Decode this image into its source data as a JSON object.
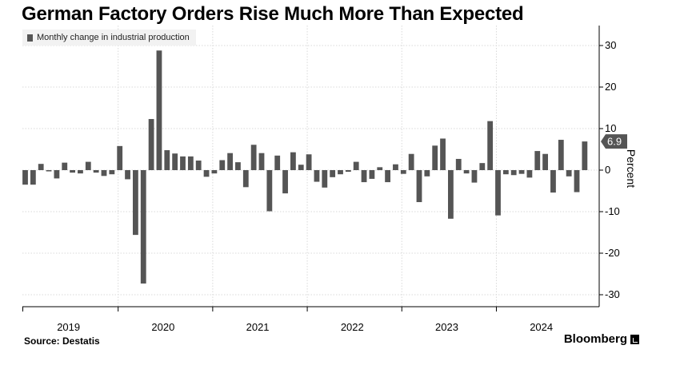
{
  "title": "German Factory Orders Rise Much More Than Expected",
  "source": "Source:  Destatis",
  "brand": "Bloomberg",
  "colors": {
    "bar": "#555555",
    "grid": "#d9d9d9",
    "axis": "#000000",
    "callout_bg": "#555555",
    "callout_text": "#ffffff"
  },
  "chart_data": {
    "type": "bar",
    "legend": [
      "Monthly change in industrial production"
    ],
    "legend_position": "top-left",
    "ylabel": "Percent",
    "ylim": [
      -33,
      34
    ],
    "yticks": [
      30,
      20,
      10,
      0,
      -10,
      -20,
      -30
    ],
    "y_axis_side": "right",
    "grid": true,
    "x_tick_labels": [
      "2019",
      "2020",
      "2021",
      "2022",
      "2023",
      "2024"
    ],
    "last_value_label": "6.9",
    "series": [
      {
        "name": "Monthly change in industrial production",
        "values": [
          -3.5,
          -3.5,
          1.5,
          -0.3,
          -2.0,
          1.8,
          -0.6,
          -0.8,
          2.0,
          -0.6,
          -1.4,
          -1.0,
          5.8,
          -2.2,
          -15.6,
          -27.3,
          12.3,
          28.8,
          4.8,
          4.0,
          3.3,
          3.3,
          2.3,
          -1.6,
          -0.8,
          2.4,
          4.1,
          1.9,
          -4.1,
          6.1,
          4.1,
          -9.9,
          3.5,
          -5.6,
          4.3,
          1.3,
          3.8,
          -2.8,
          -4.2,
          -1.7,
          -1.0,
          -0.4,
          2.0,
          -2.9,
          -2.1,
          0.7,
          -2.9,
          1.4,
          -0.9,
          3.9,
          -7.7,
          -1.5,
          5.9,
          7.6,
          -11.7,
          2.7,
          -0.8,
          -3.0,
          1.7,
          11.8,
          -10.9,
          -1.0,
          -1.2,
          -0.9,
          -1.8,
          4.6,
          3.9,
          -5.4,
          7.3,
          -1.5,
          -5.3,
          6.9
        ]
      }
    ]
  }
}
